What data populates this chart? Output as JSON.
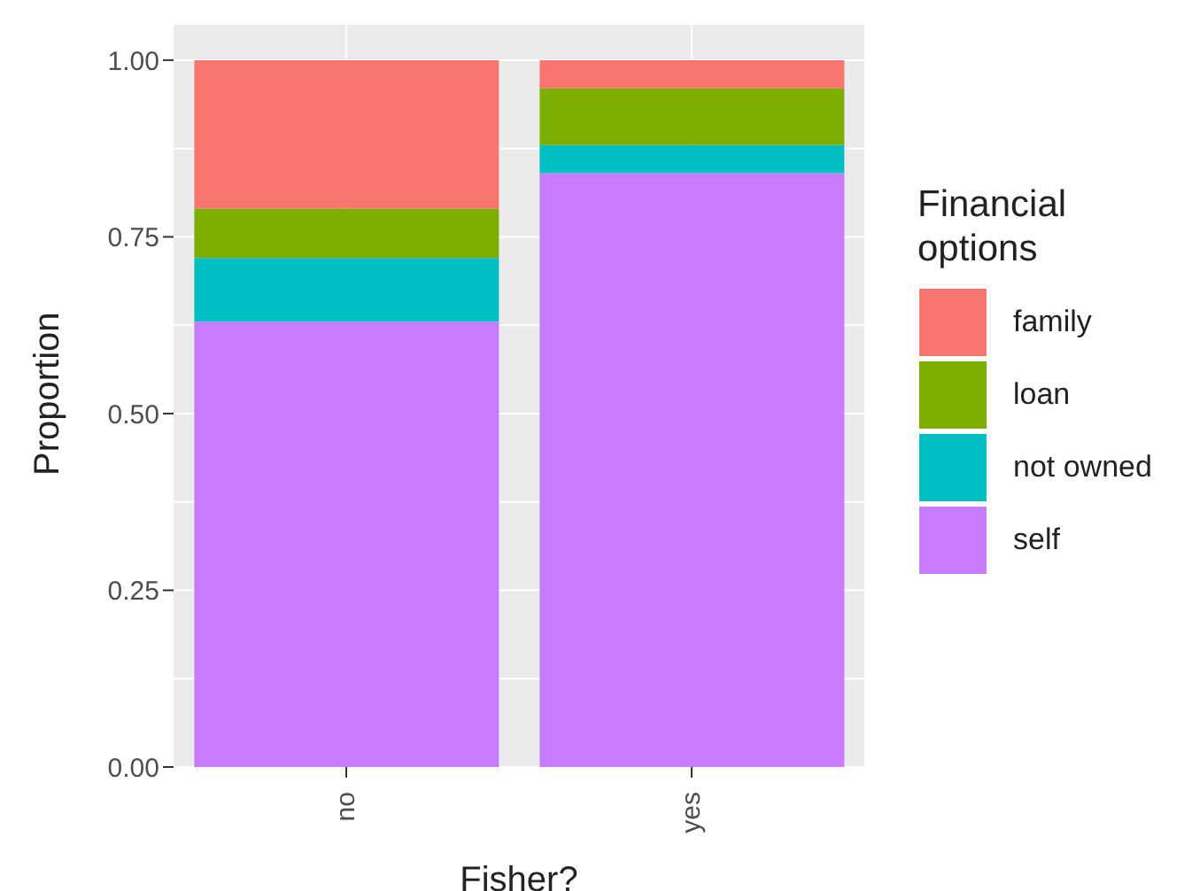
{
  "chart_data": {
    "type": "bar",
    "stacked": true,
    "xlabel": "Fisher?",
    "ylabel": "Proportion",
    "legend_title": "Financial options",
    "legend": "right",
    "grid": true,
    "categories": [
      "no",
      "yes"
    ],
    "ylim": [
      0,
      1.05
    ],
    "yticks": [
      {
        "value": 0,
        "label": "0.00"
      },
      {
        "value": 0.25,
        "label": "0.25"
      },
      {
        "value": 0.5,
        "label": "0.50"
      },
      {
        "value": 0.75,
        "label": "0.75"
      },
      {
        "value": 1,
        "label": "1.00"
      }
    ],
    "series": [
      {
        "name": "self",
        "color": "#c77cff",
        "values": [
          0.63,
          0.84
        ]
      },
      {
        "name": "not owned",
        "color": "#00bfc4",
        "values": [
          0.09,
          0.04
        ]
      },
      {
        "name": "loan",
        "color": "#7cae00",
        "values": [
          0.07,
          0.08
        ]
      },
      {
        "name": "family",
        "color": "#f8766d",
        "values": [
          0.21,
          0.04
        ]
      }
    ]
  }
}
